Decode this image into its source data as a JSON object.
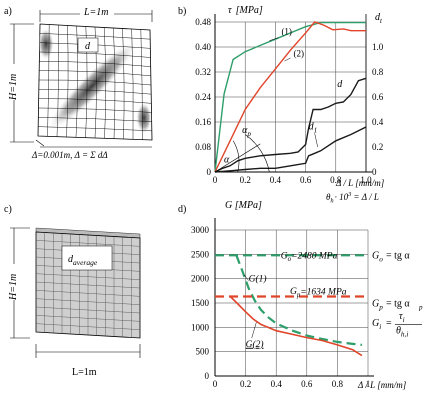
{
  "panels": {
    "a": {
      "label": "a)",
      "width_label": "L=1m",
      "height_label": "H=1m",
      "inner_label": "d",
      "disp_label": "Δ=0.001m, Δ = Σ dΔ"
    },
    "c": {
      "label": "c)",
      "width_label": "L=1m",
      "height_label": "H=1m",
      "inner_label": "d",
      "inner_sub": "average"
    }
  },
  "chart_data": [
    {
      "id": "b",
      "panel_label": "b)",
      "type": "line",
      "left_axis_label": "τ",
      "left_axis_unit": "[MPa]",
      "right_axis_label": "d",
      "right_axis_sub": "t",
      "x_axis_label": "Δ / L  [mm/m]",
      "x_axis_label2": "θ",
      "x_axis_label2_sub": "h",
      "x_axis_label2_rest": "· 10",
      "x_axis_label2_sup": "3",
      "x_axis_label2_eq": "= Δ / L",
      "xlim": [
        0,
        1.0
      ],
      "ylim_left": [
        0,
        0.48
      ],
      "ylim_right": [
        0,
        1.2
      ],
      "x_ticks": [
        "0",
        "0.2",
        "0.4",
        "0.6",
        "0.8",
        "1.0"
      ],
      "x_tick_values": [
        0,
        0.2,
        0.4,
        0.6,
        0.8,
        1.0
      ],
      "y_left_ticks": [
        "0",
        "0.08",
        "0.16",
        "0.24",
        "0.32",
        "0.40",
        "0.48"
      ],
      "y_left_tick_values": [
        0,
        0.08,
        0.16,
        0.24,
        0.32,
        0.4,
        0.48
      ],
      "y_right_ticks": [
        "0",
        "0.2",
        "0.4",
        "0.6",
        "0.8",
        "1.0"
      ],
      "y_right_tick_values": [
        0,
        0.2,
        0.4,
        0.6,
        0.8,
        1.0
      ],
      "grid_x": [
        0,
        0.2,
        0.4,
        0.6,
        0.8,
        1.0
      ],
      "grid_y": [
        0,
        0.16,
        0.24,
        0.32,
        0.4,
        0.48
      ],
      "series": [
        {
          "name": "(1)",
          "axis": "left",
          "color": "#2e9e6a",
          "x": [
            0,
            0.06,
            0.12,
            0.2,
            0.3,
            0.4,
            0.5,
            0.6,
            0.7,
            0.8,
            0.9,
            1.0
          ],
          "y": [
            0,
            0.25,
            0.36,
            0.385,
            0.405,
            0.425,
            0.445,
            0.465,
            0.478,
            0.478,
            0.478,
            0.478
          ]
        },
        {
          "name": "(2)",
          "axis": "left",
          "color": "#e0452a",
          "x": [
            0,
            0.1,
            0.2,
            0.3,
            0.4,
            0.5,
            0.6,
            0.66,
            0.72,
            0.78,
            0.85,
            0.9,
            1.0
          ],
          "y": [
            0,
            0.1,
            0.2,
            0.27,
            0.33,
            0.39,
            0.445,
            0.48,
            0.47,
            0.455,
            0.458,
            0.452,
            0.452
          ]
        },
        {
          "name": "d",
          "axis": "right",
          "color": "#1a1a1a",
          "x": [
            0,
            0.05,
            0.1,
            0.15,
            0.2,
            0.3,
            0.4,
            0.5,
            0.55,
            0.6,
            0.62,
            0.65,
            0.7,
            0.75,
            0.8,
            0.85,
            0.9,
            0.95,
            1.0
          ],
          "y": [
            0,
            0.03,
            0.05,
            0.09,
            0.11,
            0.13,
            0.14,
            0.15,
            0.16,
            0.22,
            0.35,
            0.5,
            0.5,
            0.52,
            0.55,
            0.56,
            0.62,
            0.73,
            0.75
          ]
        },
        {
          "name": "d1",
          "axis": "right",
          "color": "#1a1a1a",
          "x": [
            0,
            0.1,
            0.2,
            0.3,
            0.4,
            0.5,
            0.6,
            0.62,
            0.66,
            0.7,
            0.8,
            0.9,
            1.0
          ],
          "y": [
            0,
            0.01,
            0.02,
            0.03,
            0.03,
            0.05,
            0.07,
            0.13,
            0.15,
            0.17,
            0.25,
            0.3,
            0.36
          ]
        }
      ],
      "annotations": {
        "curve_1": "(1)",
        "curve_2": "(2)",
        "curve_d": "d",
        "curve_d1": "d",
        "curve_d1_sub": "1",
        "alpha_p": "α",
        "alpha_p_sub": "p",
        "alpha": "α"
      }
    },
    {
      "id": "d",
      "panel_label": "d)",
      "type": "line",
      "y_axis_label": "G  [MPa]",
      "x_axis_label": "Δ / L  [mm/m]",
      "xlim": [
        0,
        1.0
      ],
      "ylim": [
        0,
        3000
      ],
      "x_ticks": [
        "0",
        "0.2",
        "0.4",
        "0.6",
        "0.8",
        "1"
      ],
      "x_tick_values": [
        0,
        0.2,
        0.4,
        0.6,
        0.8,
        1.0
      ],
      "y_ticks": [
        "0",
        "500",
        "1000",
        "1500",
        "2000",
        "2500",
        "3000"
      ],
      "y_tick_values": [
        0,
        500,
        1000,
        1500,
        2000,
        2500,
        3000
      ],
      "grid_x": [
        0,
        0.2,
        0.4,
        0.6,
        0.8,
        1.0
      ],
      "grid_y": [
        0,
        500,
        1000,
        1500,
        2000,
        2500,
        3000
      ],
      "series": [
        {
          "name": "G(1)",
          "color": "#2e9e6a",
          "dashed": true,
          "x": [
            0.14,
            0.18,
            0.22,
            0.26,
            0.3,
            0.35,
            0.4,
            0.5,
            0.6,
            0.7,
            0.8,
            0.9,
            0.96
          ],
          "y": [
            2480,
            2150,
            1800,
            1550,
            1360,
            1200,
            1080,
            940,
            830,
            760,
            700,
            660,
            640
          ]
        },
        {
          "name": "G(2)",
          "color": "#e0452a",
          "dashed": false,
          "x": [
            0.1,
            0.15,
            0.2,
            0.25,
            0.3,
            0.4,
            0.5,
            0.6,
            0.7,
            0.8,
            0.9,
            0.96
          ],
          "y": [
            1634,
            1480,
            1320,
            1170,
            1060,
            930,
            860,
            790,
            730,
            640,
            540,
            420
          ]
        },
        {
          "name": "G0",
          "color": "#2e9e6a",
          "dashed": true,
          "x": [
            0,
            1.0
          ],
          "y": [
            2480,
            2480
          ]
        },
        {
          "name": "Gp",
          "color": "#e0452a",
          "dashed": true,
          "x": [
            0,
            1.0
          ],
          "y": [
            1634,
            1634
          ]
        }
      ],
      "annotations": {
        "g0_text": "G",
        "g0_sub": "o",
        "g0_val": "=2480 MPa",
        "gp_text": "G",
        "gp_sub": "p",
        "gp_val": "=1634 MPa",
        "g1_label": "G(1)",
        "g2_label": "G(2)",
        "eq_g0_lhs": "G",
        "eq_g0_sub": "o",
        "eq_g0_rhs": "= tg α",
        "eq_gp_lhs": "G",
        "eq_gp_sub": "p",
        "eq_gp_rhs": "= tg α",
        "eq_gp_rhs_sub": "p",
        "eq_gi_lhs": "G",
        "eq_gi_sub": "i",
        "eq_gi_num": "τ",
        "eq_gi_num_sub": "i",
        "eq_gi_den": "θ",
        "eq_gi_den_sub": "h,i"
      }
    }
  ]
}
